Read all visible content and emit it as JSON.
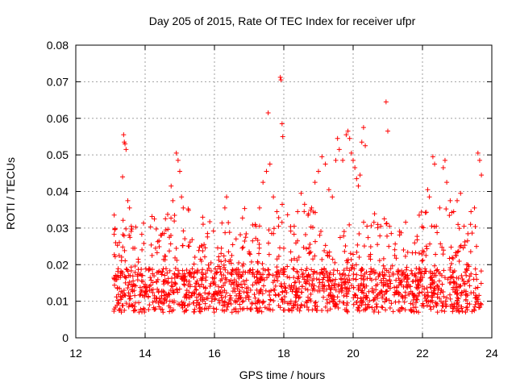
{
  "chart_data": {
    "type": "scatter",
    "title": "Day 205 of 2015, Rate Of TEC Index for receiver ufpr",
    "xlabel": "GPS time / hours",
    "ylabel": "ROTI / TECUs",
    "xlim": [
      12,
      24
    ],
    "ylim": [
      0,
      0.08
    ],
    "xticks": [
      "12",
      "14",
      "16",
      "18",
      "20",
      "22",
      "24"
    ],
    "yticks": [
      "0",
      "0.01",
      "0.02",
      "0.03",
      "0.04",
      "0.05",
      "0.06",
      "0.07",
      "0.08"
    ],
    "grid": true,
    "marker": "plus",
    "color": "#ff0000",
    "data_range_x": [
      13.1,
      23.7
    ],
    "series": [
      {
        "name": "ROTI",
        "points": [
          [
            13.2,
            0.0135
          ],
          [
            13.25,
            0.0225
          ],
          [
            13.3,
            0.0105
          ],
          [
            13.35,
            0.044
          ],
          [
            13.38,
            0.0555
          ],
          [
            13.4,
            0.0535
          ],
          [
            13.42,
            0.053
          ],
          [
            13.45,
            0.0515
          ],
          [
            13.5,
            0.0375
          ],
          [
            13.55,
            0.0355
          ],
          [
            13.6,
            0.0305
          ],
          [
            13.7,
            0.0245
          ],
          [
            13.8,
            0.0215
          ],
          [
            13.9,
            0.0155
          ],
          [
            14.0,
            0.0125
          ],
          [
            14.1,
            0.0185
          ],
          [
            14.2,
            0.0225
          ],
          [
            14.3,
            0.0245
          ],
          [
            14.4,
            0.0265
          ],
          [
            14.5,
            0.0285
          ],
          [
            14.6,
            0.0295
          ],
          [
            14.7,
            0.0275
          ],
          [
            14.75,
            0.0415
          ],
          [
            14.8,
            0.0375
          ],
          [
            14.85,
            0.0335
          ],
          [
            14.9,
            0.0505
          ],
          [
            14.95,
            0.0485
          ],
          [
            15.0,
            0.0455
          ],
          [
            15.05,
            0.0385
          ],
          [
            15.1,
            0.0355
          ],
          [
            15.2,
            0.0185
          ],
          [
            15.3,
            0.0145
          ],
          [
            15.4,
            0.0165
          ],
          [
            15.5,
            0.0155
          ],
          [
            15.6,
            0.0215
          ],
          [
            15.7,
            0.0255
          ],
          [
            15.8,
            0.0285
          ],
          [
            15.9,
            0.0205
          ],
          [
            16.0,
            0.0165
          ],
          [
            16.1,
            0.0195
          ],
          [
            16.2,
            0.0245
          ],
          [
            16.3,
            0.0355
          ],
          [
            16.35,
            0.0385
          ],
          [
            16.4,
            0.0315
          ],
          [
            16.5,
            0.0225
          ],
          [
            16.6,
            0.0185
          ],
          [
            16.7,
            0.0205
          ],
          [
            16.8,
            0.0245
          ],
          [
            16.9,
            0.0275
          ],
          [
            17.0,
            0.0235
          ],
          [
            17.1,
            0.0265
          ],
          [
            17.2,
            0.0305
          ],
          [
            17.3,
            0.0355
          ],
          [
            17.4,
            0.0425
          ],
          [
            17.5,
            0.0455
          ],
          [
            17.55,
            0.0615
          ],
          [
            17.6,
            0.0475
          ],
          [
            17.7,
            0.0385
          ],
          [
            17.8,
            0.0345
          ],
          [
            17.85,
            0.0305
          ],
          [
            17.9,
            0.0712
          ],
          [
            17.92,
            0.0705
          ],
          [
            17.95,
            0.0585
          ],
          [
            17.97,
            0.055
          ],
          [
            18.0,
            0.0245
          ],
          [
            18.1,
            0.0195
          ],
          [
            18.2,
            0.0235
          ],
          [
            18.3,
            0.0305
          ],
          [
            18.4,
            0.0345
          ],
          [
            18.5,
            0.0395
          ],
          [
            18.6,
            0.0365
          ],
          [
            18.7,
            0.0335
          ],
          [
            18.8,
            0.0355
          ],
          [
            18.9,
            0.0425
          ],
          [
            19.0,
            0.0455
          ],
          [
            19.1,
            0.0495
          ],
          [
            19.2,
            0.0475
          ],
          [
            19.3,
            0.0405
          ],
          [
            19.4,
            0.0385
          ],
          [
            19.5,
            0.0485
          ],
          [
            19.55,
            0.0545
          ],
          [
            19.6,
            0.0515
          ],
          [
            19.7,
            0.0485
          ],
          [
            19.8,
            0.0555
          ],
          [
            19.85,
            0.0565
          ],
          [
            19.9,
            0.0545
          ],
          [
            19.95,
            0.0505
          ],
          [
            20.0,
            0.0485
          ],
          [
            20.05,
            0.0465
          ],
          [
            20.1,
            0.0435
          ],
          [
            20.15,
            0.0415
          ],
          [
            20.2,
            0.0445
          ],
          [
            20.25,
            0.0535
          ],
          [
            20.3,
            0.0575
          ],
          [
            20.35,
            0.0525
          ],
          [
            20.4,
            0.0305
          ],
          [
            20.5,
            0.0215
          ],
          [
            20.6,
            0.0185
          ],
          [
            20.7,
            0.0255
          ],
          [
            20.8,
            0.0305
          ],
          [
            20.9,
            0.0325
          ],
          [
            20.95,
            0.0645
          ],
          [
            21.0,
            0.0565
          ],
          [
            21.05,
            0.0305
          ],
          [
            21.1,
            0.0285
          ],
          [
            21.2,
            0.0225
          ],
          [
            21.3,
            0.0185
          ],
          [
            21.4,
            0.0155
          ],
          [
            21.5,
            0.0165
          ],
          [
            21.6,
            0.0145
          ],
          [
            21.7,
            0.0175
          ],
          [
            21.8,
            0.0155
          ],
          [
            21.9,
            0.0145
          ],
          [
            22.0,
            0.0165
          ],
          [
            22.1,
            0.0225
          ],
          [
            22.15,
            0.0405
          ],
          [
            22.2,
            0.0385
          ],
          [
            22.3,
            0.0495
          ],
          [
            22.35,
            0.0475
          ],
          [
            22.4,
            0.0305
          ],
          [
            22.5,
            0.0355
          ],
          [
            22.6,
            0.0465
          ],
          [
            22.65,
            0.0485
          ],
          [
            22.7,
            0.0425
          ],
          [
            22.8,
            0.0375
          ],
          [
            22.9,
            0.0345
          ],
          [
            23.0,
            0.0375
          ],
          [
            23.1,
            0.0395
          ],
          [
            23.2,
            0.0305
          ],
          [
            23.3,
            0.0265
          ],
          [
            23.4,
            0.0345
          ],
          [
            23.5,
            0.0355
          ],
          [
            23.6,
            0.0505
          ],
          [
            23.65,
            0.0485
          ],
          [
            23.7,
            0.0445
          ]
        ]
      }
    ]
  }
}
